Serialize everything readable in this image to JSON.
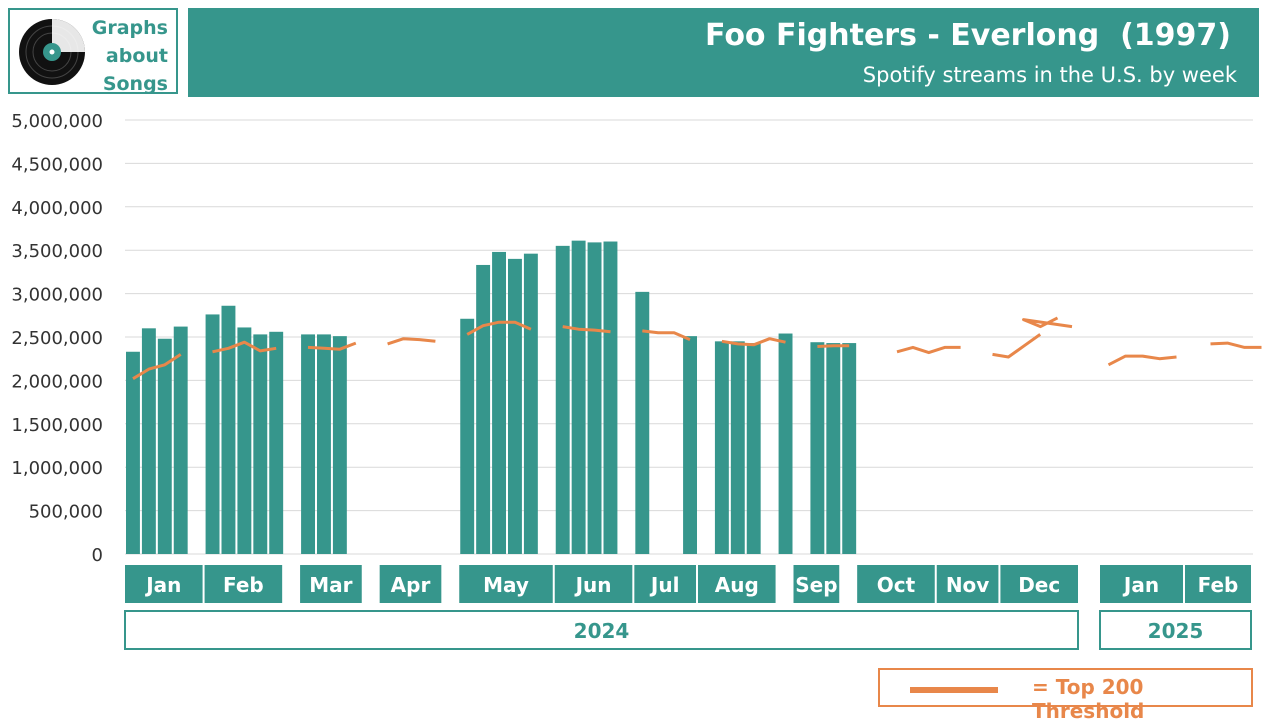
{
  "logo": {
    "lines": [
      "Graphs",
      "about",
      "Songs"
    ]
  },
  "header": {
    "title": "Foo Fighters - Everlong  (1997)",
    "subtitle": "Spotify streams in the U.S. by week"
  },
  "legend": {
    "label": "= Top 200 Threshold"
  },
  "colors": {
    "bar": "#36968c",
    "line": "#e8874a",
    "grid": "#d9d9d9",
    "axis_text": "#333333"
  },
  "chart_data": {
    "type": "bar",
    "title": "Foo Fighters - Everlong  (1997)",
    "subtitle": "Spotify streams in the U.S. by week",
    "xlabel": "",
    "ylabel": "",
    "ylim": [
      0,
      5000000
    ],
    "yticks": [
      "0",
      "500,000",
      "1,000,000",
      "1,500,000",
      "2,000,000",
      "2,500,000",
      "3,000,000",
      "3,500,000",
      "4,000,000",
      "4,500,000",
      "5,000,000"
    ],
    "total_weeks": 60,
    "months": [
      {
        "label": "Jan",
        "start": 0,
        "end": 4
      },
      {
        "label": "Feb",
        "start": 5,
        "end": 9
      },
      {
        "label": "Mar",
        "start": 11,
        "end": 14
      },
      {
        "label": "Apr",
        "start": 16,
        "end": 19
      },
      {
        "label": "May",
        "start": 21,
        "end": 26
      },
      {
        "label": "Jun",
        "start": 27,
        "end": 31
      },
      {
        "label": "Jul",
        "start": 32,
        "end": 35
      },
      {
        "label": "Aug",
        "start": 36,
        "end": 40
      },
      {
        "label": "Sep",
        "start": 42,
        "end": 44
      },
      {
        "label": "Oct",
        "start": 46,
        "end": 50
      },
      {
        "label": "Nov",
        "start": 51,
        "end": 54
      },
      {
        "label": "Dec",
        "start": 55,
        "end": 59
      }
    ],
    "months_2025": [
      {
        "label": "Jan",
        "start": 60,
        "end": 64
      },
      {
        "label": "Feb",
        "start": 65,
        "end": 68
      }
    ],
    "years": [
      {
        "label": "2024",
        "start": 0,
        "end": 59
      },
      {
        "label": "2025",
        "start": 60,
        "end": 68
      }
    ],
    "series": [
      {
        "name": "Weekly streams",
        "type": "bar",
        "points": [
          {
            "week": 0,
            "value": 2330000
          },
          {
            "week": 1,
            "value": 2600000
          },
          {
            "week": 2,
            "value": 2480000
          },
          {
            "week": 3,
            "value": 2620000
          },
          {
            "week": 5,
            "value": 2760000
          },
          {
            "week": 6,
            "value": 2860000
          },
          {
            "week": 7,
            "value": 2610000
          },
          {
            "week": 8,
            "value": 2530000
          },
          {
            "week": 9,
            "value": 2560000
          },
          {
            "week": 11,
            "value": 2530000
          },
          {
            "week": 12,
            "value": 2530000
          },
          {
            "week": 13,
            "value": 2510000
          },
          {
            "week": 21,
            "value": 2710000
          },
          {
            "week": 22,
            "value": 3330000
          },
          {
            "week": 23,
            "value": 3480000
          },
          {
            "week": 24,
            "value": 3400000
          },
          {
            "week": 25,
            "value": 3460000
          },
          {
            "week": 27,
            "value": 3550000
          },
          {
            "week": 28,
            "value": 3610000
          },
          {
            "week": 29,
            "value": 3590000
          },
          {
            "week": 30,
            "value": 3600000
          },
          {
            "week": 32,
            "value": 3020000
          },
          {
            "week": 35,
            "value": 2510000
          },
          {
            "week": 37,
            "value": 2450000
          },
          {
            "week": 38,
            "value": 2450000
          },
          {
            "week": 39,
            "value": 2430000
          },
          {
            "week": 41,
            "value": 2540000
          },
          {
            "week": 43,
            "value": 2440000
          },
          {
            "week": 44,
            "value": 2430000
          },
          {
            "week": 45,
            "value": 2430000
          }
        ]
      },
      {
        "name": "Top 200 Threshold",
        "type": "line",
        "segments": [
          [
            [
              0,
              2020000
            ],
            [
              1,
              2130000
            ],
            [
              2,
              2180000
            ],
            [
              3,
              2300000
            ]
          ],
          [
            [
              5,
              2330000
            ],
            [
              6,
              2370000
            ],
            [
              7,
              2440000
            ],
            [
              8,
              2340000
            ],
            [
              9,
              2370000
            ]
          ],
          [
            [
              11,
              2380000
            ],
            [
              12,
              2370000
            ],
            [
              13,
              2360000
            ],
            [
              14,
              2430000
            ]
          ],
          [
            [
              16,
              2420000
            ],
            [
              17,
              2480000
            ],
            [
              18,
              2470000
            ],
            [
              19,
              2450000
            ]
          ],
          [
            [
              21,
              2530000
            ],
            [
              22,
              2630000
            ],
            [
              23,
              2670000
            ],
            [
              24,
              2670000
            ],
            [
              25,
              2590000
            ]
          ],
          [
            [
              27,
              2620000
            ],
            [
              28,
              2590000
            ],
            [
              29,
              2580000
            ],
            [
              30,
              2560000
            ]
          ],
          [
            [
              32,
              2570000
            ],
            [
              33,
              2550000
            ],
            [
              34,
              2550000
            ],
            [
              35,
              2470000
            ]
          ],
          [
            [
              37,
              2450000
            ],
            [
              38,
              2420000
            ],
            [
              39,
              2410000
            ],
            [
              40,
              2480000
            ],
            [
              41,
              2440000
            ]
          ],
          [
            [
              43,
              2390000
            ],
            [
              44,
              2400000
            ],
            [
              45,
              2400000
            ]
          ],
          [
            [
              48,
              2330000
            ],
            [
              49,
              2380000
            ],
            [
              50,
              2320000
            ],
            [
              51,
              2380000
            ],
            [
              52,
              2380000
            ]
          ],
          [
            [
              54,
              2300000
            ],
            [
              55,
              2270000
            ],
            [
              56,
              2400000
            ],
            [
              57,
              2530000
            ]
          ],
          [
            [
              59,
              2620000
            ],
            [
              60,
              2700000
            ],
            [
              61,
              2620000
            ],
            [
              62,
              2720000
            ]
          ],
          [
            [
              65,
              2180000
            ],
            [
              66,
              2280000
            ],
            [
              67,
              2280000
            ],
            [
              68,
              2250000
            ],
            [
              69,
              2270000
            ]
          ],
          [
            [
              71,
              2420000
            ],
            [
              72,
              2430000
            ],
            [
              73,
              2380000
            ],
            [
              74,
              2380000
            ]
          ]
        ]
      }
    ]
  }
}
